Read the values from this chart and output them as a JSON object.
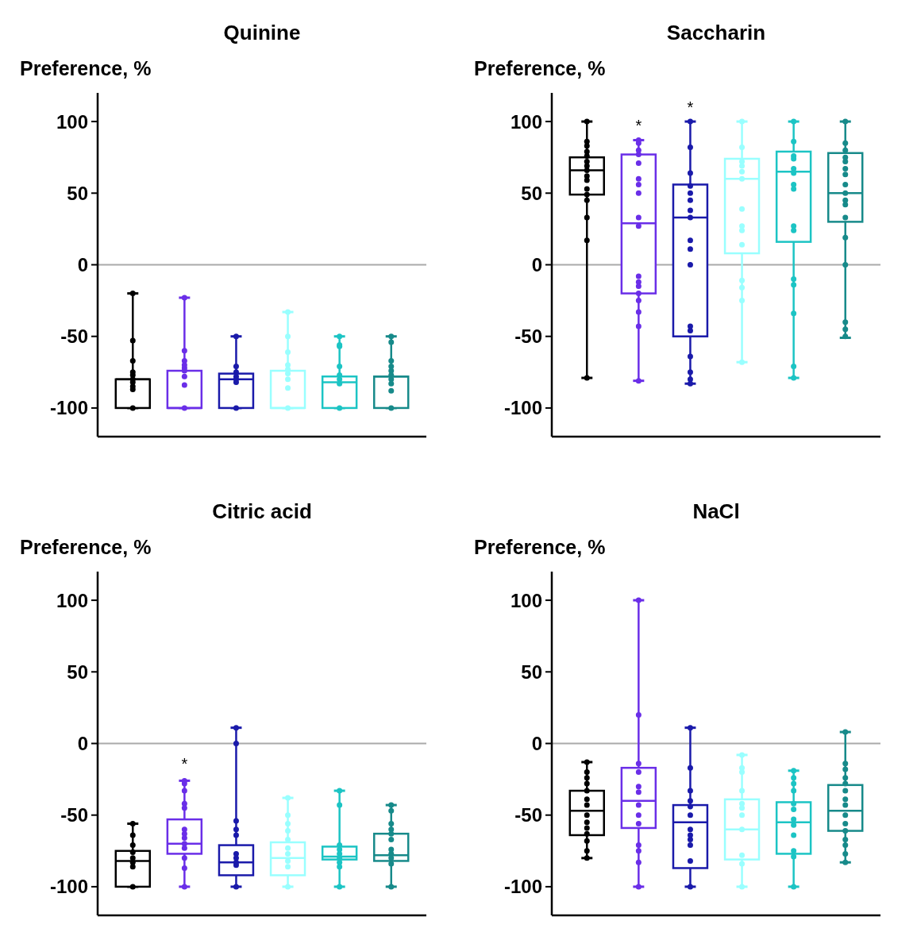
{
  "chart_data": [
    {
      "type": "box",
      "title": "Quinine",
      "ylabel": "Preference, %",
      "categories": [
        null,
        null,
        null,
        null,
        null,
        null
      ],
      "ylim": [
        -120,
        120
      ],
      "yticks": [
        -100,
        -50,
        0,
        50,
        100
      ],
      "tick_labels": "y",
      "marker": "circle",
      "colors": [
        "#000000",
        "#6a2ee8",
        "#1a1aaa",
        "#99ffff",
        "#1cc4c4",
        "#178a8a"
      ],
      "ref_lines": [
        {
          "axis": "y",
          "value": 0,
          "color": "#aaaaaa"
        }
      ],
      "boxes": [
        {
          "low": -100,
          "q1": -100,
          "median": -80,
          "q3": -80,
          "high": -20,
          "outliers": [
            -20,
            -53,
            -67,
            -75,
            -77,
            -80,
            -82,
            -85,
            -87,
            -100
          ]
        },
        {
          "low": -100,
          "q1": -100,
          "median": -100,
          "q3": -74,
          "high": -23,
          "outliers": [
            -23,
            -60,
            -67,
            -70,
            -72,
            -74,
            -78,
            -84,
            -100
          ]
        },
        {
          "low": -100,
          "q1": -100,
          "median": -80,
          "q3": -76,
          "high": -50,
          "outliers": [
            -50,
            -71,
            -75,
            -78,
            -80,
            -82,
            -100
          ]
        },
        {
          "low": -100,
          "q1": -100,
          "median": -100,
          "q3": -74,
          "high": -33,
          "outliers": [
            -33,
            -50,
            -61,
            -70,
            -73,
            -76,
            -80,
            -86,
            -100
          ]
        },
        {
          "low": -100,
          "q1": -100,
          "median": -82,
          "q3": -78,
          "high": -50,
          "outliers": [
            -50,
            -56,
            -57,
            -71,
            -77,
            -80,
            -83,
            -100
          ]
        },
        {
          "low": -100,
          "q1": -100,
          "median": -78,
          "q3": -78,
          "high": -50,
          "outliers": [
            -50,
            -54,
            -67,
            -71,
            -74,
            -77,
            -80,
            -83,
            -88,
            -100
          ]
        }
      ]
    },
    {
      "type": "box",
      "title": "Saccharin",
      "ylabel": "Preference, %",
      "categories": [
        null,
        null,
        null,
        null,
        null,
        null
      ],
      "ylim": [
        -120,
        120
      ],
      "yticks": [
        -100,
        -50,
        0,
        50,
        100
      ],
      "tick_labels": "y",
      "marker": "circle",
      "colors": [
        "#000000",
        "#6a2ee8",
        "#1a1aaa",
        "#99ffff",
        "#1cc4c4",
        "#178a8a"
      ],
      "ref_lines": [
        {
          "axis": "y",
          "value": 0,
          "color": "#aaaaaa"
        }
      ],
      "annotations": [
        "*",
        "*"
      ],
      "boxes": [
        {
          "low": -79,
          "q1": 49,
          "median": 66,
          "q3": 75,
          "high": 100,
          "outliers": [
            100,
            86,
            83,
            79,
            76,
            72,
            69,
            66,
            62,
            59,
            53,
            49,
            45,
            33,
            17,
            -79
          ]
        },
        {
          "low": -81,
          "q1": -20,
          "median": 29,
          "q3": 77,
          "high": 87,
          "outliers": [
            87,
            85,
            80,
            77,
            71,
            60,
            56,
            50,
            33,
            27,
            -8,
            -12,
            -15,
            -20,
            -25,
            -33,
            -43,
            -81
          ]
        },
        {
          "low": -83,
          "q1": -50,
          "median": 33,
          "q3": 56,
          "high": 100,
          "outliers": [
            100,
            82,
            64,
            55,
            50,
            45,
            38,
            33,
            17,
            11,
            0,
            -43,
            -46,
            -64,
            -75,
            -80,
            -83
          ]
        },
        {
          "low": -68,
          "q1": 8,
          "median": 60,
          "q3": 74,
          "high": 100,
          "outliers": [
            100,
            82,
            72,
            69,
            65,
            60,
            39,
            27,
            24,
            14,
            -11,
            -16,
            -25,
            -68
          ]
        },
        {
          "low": -79,
          "q1": 16,
          "median": 65,
          "q3": 79,
          "high": 100,
          "outliers": [
            100,
            86,
            76,
            74,
            67,
            64,
            56,
            53,
            27,
            24,
            -10,
            -14,
            -34,
            -71,
            -79
          ]
        },
        {
          "low": -51,
          "q1": 30,
          "median": 50,
          "q3": 78,
          "high": 100,
          "outliers": [
            100,
            85,
            80,
            75,
            72,
            67,
            63,
            56,
            50,
            45,
            42,
            33,
            19,
            0,
            -40,
            -45,
            -50
          ]
        }
      ]
    },
    {
      "type": "box",
      "title": "Citric acid",
      "ylabel": "Preference, %",
      "categories": [
        null,
        null,
        null,
        null,
        null,
        null
      ],
      "ylim": [
        -120,
        120
      ],
      "yticks": [
        -100,
        -50,
        0,
        50,
        100
      ],
      "tick_labels": "y",
      "marker": "circle",
      "colors": [
        "#000000",
        "#6a2ee8",
        "#1a1aaa",
        "#99ffff",
        "#1cc4c4",
        "#178a8a"
      ],
      "ref_lines": [
        {
          "axis": "y",
          "value": 0,
          "color": "#aaaaaa"
        }
      ],
      "annotations": [
        "*"
      ],
      "boxes": [
        {
          "low": -100,
          "q1": -100,
          "median": -82,
          "q3": -75,
          "high": -56,
          "outliers": [
            -56,
            -64,
            -71,
            -76,
            -80,
            -83,
            -86,
            -100
          ]
        },
        {
          "low": -100,
          "q1": -77,
          "median": -70,
          "q3": -53,
          "high": -26,
          "outliers": [
            -26,
            -28,
            -33,
            -42,
            -45,
            -60,
            -63,
            -66,
            -70,
            -73,
            -80,
            -87,
            -100
          ]
        },
        {
          "low": -100,
          "q1": -92,
          "median": -83,
          "q3": -71,
          "high": 11,
          "outliers": [
            11,
            0,
            -54,
            -60,
            -64,
            -77,
            -80,
            -83,
            -85,
            -100
          ]
        },
        {
          "low": -100,
          "q1": -92,
          "median": -80,
          "q3": -69,
          "high": -38,
          "outliers": [
            -38,
            -50,
            -56,
            -61,
            -67,
            -73,
            -77,
            -82,
            -86,
            -100
          ]
        },
        {
          "low": -100,
          "q1": -81,
          "median": -79,
          "q3": -72,
          "high": -33,
          "outliers": [
            -33,
            -43,
            -71,
            -74,
            -77,
            -80,
            -83,
            -86,
            -100
          ]
        },
        {
          "low": -100,
          "q1": -82,
          "median": -78,
          "q3": -63,
          "high": -43,
          "outliers": [
            -43,
            -47,
            -56,
            -60,
            -63,
            -67,
            -74,
            -77,
            -80,
            -84,
            -100
          ]
        }
      ]
    },
    {
      "type": "box",
      "title": "NaCl",
      "ylabel": "Preference, %",
      "categories": [
        null,
        null,
        null,
        null,
        null,
        null
      ],
      "ylim": [
        -120,
        120
      ],
      "yticks": [
        -100,
        -50,
        0,
        50,
        100
      ],
      "tick_labels": "y",
      "marker": "circle",
      "colors": [
        "#000000",
        "#6a2ee8",
        "#1a1aaa",
        "#99ffff",
        "#1cc4c4",
        "#178a8a"
      ],
      "ref_lines": [
        {
          "axis": "y",
          "value": 0,
          "color": "#aaaaaa"
        }
      ],
      "boxes": [
        {
          "low": -80,
          "q1": -64,
          "median": -47,
          "q3": -33,
          "high": -13,
          "outliers": [
            -13,
            -20,
            -24,
            -28,
            -33,
            -39,
            -43,
            -50,
            -55,
            -59,
            -63,
            -68,
            -75,
            -80
          ]
        },
        {
          "low": -100,
          "q1": -59,
          "median": -40,
          "q3": -17,
          "high": 100,
          "outliers": [
            100,
            20,
            -14,
            -20,
            -30,
            -34,
            -43,
            -50,
            -56,
            -71,
            -75,
            -83,
            -100
          ]
        },
        {
          "low": -100,
          "q1": -87,
          "median": -55,
          "q3": -43,
          "high": 11,
          "outliers": [
            11,
            -17,
            -33,
            -40,
            -44,
            -50,
            -60,
            -64,
            -67,
            -71,
            -82,
            -100
          ]
        },
        {
          "low": -100,
          "q1": -81,
          "median": -60,
          "q3": -39,
          "high": -8,
          "outliers": [
            -8,
            -17,
            -20,
            -33,
            -42,
            -45,
            -50,
            -60,
            -78,
            -84,
            -100
          ]
        },
        {
          "low": -100,
          "q1": -77,
          "median": -55,
          "q3": -41,
          "high": -19,
          "outliers": [
            -19,
            -24,
            -28,
            -33,
            -42,
            -46,
            -53,
            -57,
            -64,
            -75,
            -79,
            -100
          ]
        },
        {
          "low": -83,
          "q1": -61,
          "median": -47,
          "q3": -29,
          "high": 8,
          "outliers": [
            8,
            -14,
            -18,
            -24,
            -28,
            -33,
            -39,
            -43,
            -50,
            -56,
            -61,
            -67,
            -71,
            -77,
            -83
          ]
        }
      ]
    }
  ]
}
